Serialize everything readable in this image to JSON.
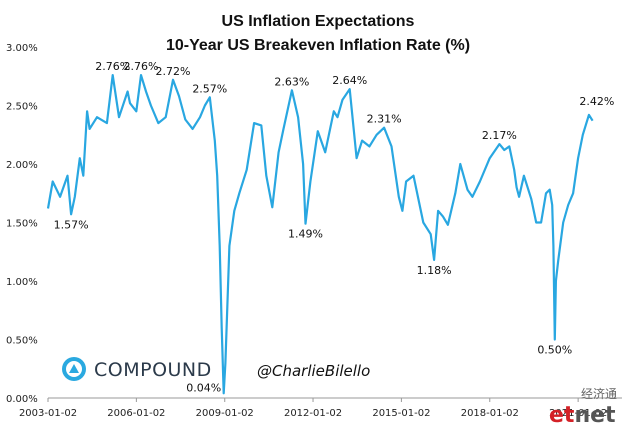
{
  "chart_data": {
    "type": "line",
    "title": "US Inflation Expectations",
    "subtitle": "10-Year US Breakeven Inflation Rate (%)",
    "xlabel": "",
    "ylabel": "",
    "ylim": [
      0,
      3.0
    ],
    "xlim": [
      "2003-01-02",
      "2022-06-30"
    ],
    "grid": false,
    "line_color": "#29a7e1",
    "y_ticks": [
      "0.00%",
      "0.50%",
      "1.00%",
      "1.50%",
      "2.00%",
      "2.50%",
      "3.00%"
    ],
    "x_ticks": [
      "2003-01-02",
      "2006-01-02",
      "2009-01-02",
      "2012-01-02",
      "2015-01-02",
      "2018-01-02",
      "2021-01-02"
    ],
    "series": [
      {
        "x": [
          "2003-01-02",
          "2003-03-01",
          "2003-06-01",
          "2003-09-01",
          "2003-10-15",
          "2003-12-01",
          "2004-02-01",
          "2004-03-15",
          "2004-05-01",
          "2004-06-01",
          "2004-09-01",
          "2005-01-01",
          "2005-03-15",
          "2005-06-01",
          "2005-09-15",
          "2005-10-15",
          "2006-01-01",
          "2006-03-01",
          "2006-05-01",
          "2006-07-01",
          "2006-10-01",
          "2007-01-01",
          "2007-04-01",
          "2007-06-15",
          "2007-09-01",
          "2007-12-01",
          "2008-03-01",
          "2008-05-01",
          "2008-07-01",
          "2008-09-01",
          "2008-10-01",
          "2008-11-01",
          "2008-11-25",
          "2008-12-20",
          "2009-01-10",
          "2009-03-01",
          "2009-05-01",
          "2009-07-01",
          "2009-10-01",
          "2010-01-01",
          "2010-04-01",
          "2010-06-01",
          "2010-08-15",
          "2010-11-01",
          "2011-01-01",
          "2011-04-15",
          "2011-07-01",
          "2011-09-01",
          "2011-10-01",
          "2011-12-01",
          "2012-03-01",
          "2012-06-01",
          "2012-09-15",
          "2012-11-01",
          "2013-01-01",
          "2013-04-01",
          "2013-06-25",
          "2013-09-01",
          "2013-12-01",
          "2014-03-01",
          "2014-06-01",
          "2014-09-01",
          "2014-12-01",
          "2015-01-15",
          "2015-03-01",
          "2015-06-01",
          "2015-08-01",
          "2015-10-01",
          "2016-01-01",
          "2016-02-11",
          "2016-04-01",
          "2016-06-01",
          "2016-08-01",
          "2016-11-01",
          "2017-01-01",
          "2017-04-01",
          "2017-06-01",
          "2017-09-01",
          "2018-01-01",
          "2018-05-01",
          "2018-07-01",
          "2018-09-01",
          "2018-11-01",
          "2018-12-01",
          "2019-01-01",
          "2019-03-01",
          "2019-06-01",
          "2019-08-01",
          "2019-10-01",
          "2019-12-01",
          "2020-01-15",
          "2020-02-15",
          "2020-03-01",
          "2020-03-19",
          "2020-04-01",
          "2020-05-01",
          "2020-07-01",
          "2020-09-01",
          "2020-11-01",
          "2021-01-01",
          "2021-03-01",
          "2021-05-15",
          "2021-06-30"
        ],
        "values": [
          1.62,
          1.85,
          1.72,
          1.9,
          1.57,
          1.72,
          2.05,
          1.9,
          2.45,
          2.3,
          2.4,
          2.35,
          2.76,
          2.4,
          2.62,
          2.52,
          2.45,
          2.76,
          2.62,
          2.5,
          2.35,
          2.4,
          2.72,
          2.58,
          2.38,
          2.3,
          2.4,
          2.5,
          2.57,
          2.2,
          1.9,
          1.3,
          0.6,
          0.04,
          0.3,
          1.3,
          1.6,
          1.75,
          1.95,
          2.35,
          2.33,
          1.9,
          1.63,
          2.1,
          2.3,
          2.63,
          2.4,
          2.0,
          1.49,
          1.85,
          2.28,
          2.1,
          2.45,
          2.4,
          2.55,
          2.64,
          2.05,
          2.2,
          2.15,
          2.25,
          2.31,
          2.15,
          1.72,
          1.6,
          1.85,
          1.9,
          1.7,
          1.5,
          1.4,
          1.18,
          1.6,
          1.55,
          1.48,
          1.75,
          2.0,
          1.78,
          1.72,
          1.85,
          2.05,
          2.17,
          2.12,
          2.15,
          1.95,
          1.8,
          1.72,
          1.9,
          1.7,
          1.5,
          1.5,
          1.75,
          1.78,
          1.65,
          1.3,
          0.5,
          1.0,
          1.18,
          1.5,
          1.65,
          1.75,
          2.05,
          2.25,
          2.42,
          2.37
        ]
      }
    ],
    "annotations": [
      {
        "label": "1.57%",
        "x": "2003-10-15",
        "y": 1.57
      },
      {
        "label": "2.76%",
        "x": "2005-03-15",
        "y": 2.76
      },
      {
        "label": "2.76%",
        "x": "2006-03-01",
        "y": 2.76
      },
      {
        "label": "2.72%",
        "x": "2007-04-01",
        "y": 2.72
      },
      {
        "label": "2.57%",
        "x": "2008-07-01",
        "y": 2.57
      },
      {
        "label": "0.04%",
        "x": "2008-12-20",
        "y": 0.04
      },
      {
        "label": "2.63%",
        "x": "2011-04-15",
        "y": 2.63
      },
      {
        "label": "1.49%",
        "x": "2011-10-01",
        "y": 1.49
      },
      {
        "label": "2.64%",
        "x": "2013-04-01",
        "y": 2.64
      },
      {
        "label": "2.31%",
        "x": "2014-06-01",
        "y": 2.31
      },
      {
        "label": "1.18%",
        "x": "2016-02-11",
        "y": 1.18
      },
      {
        "label": "2.17%",
        "x": "2018-05-01",
        "y": 2.17
      },
      {
        "label": "0.50%",
        "x": "2020-03-19",
        "y": 0.5
      },
      {
        "label": "2.42%",
        "x": "2021-05-15",
        "y": 2.42
      }
    ]
  },
  "branding": {
    "logo_text": "COMPOUND",
    "logo_icon": "compound-logo-icon",
    "handle": "@CharlieBilello",
    "watermark_cn": "经济通",
    "watermark_en": "etnet"
  }
}
